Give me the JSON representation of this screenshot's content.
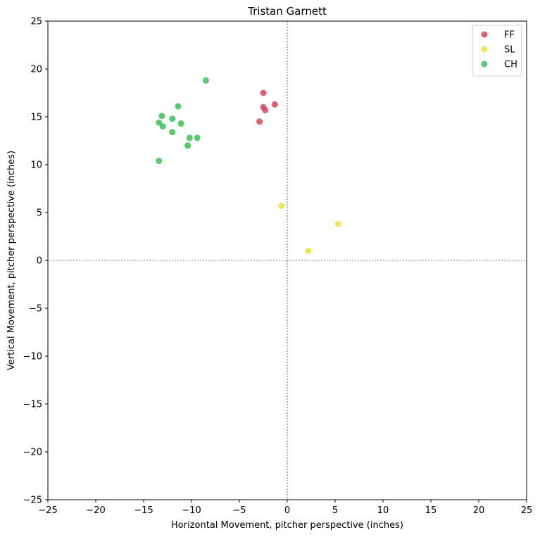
{
  "chart_data": {
    "type": "scatter",
    "title": "Tristan Garnett",
    "xlabel": "Horizontal Movement, pitcher perspective (inches)",
    "ylabel": "Vertical Movement, pitcher perspective (inches)",
    "xlim": [
      -25,
      25
    ],
    "ylim": [
      -25,
      25
    ],
    "xticks": [
      -25,
      -20,
      -15,
      -10,
      -5,
      0,
      5,
      10,
      15,
      20,
      25
    ],
    "yticks": [
      -25,
      -20,
      -15,
      -10,
      -5,
      0,
      5,
      10,
      15,
      20,
      25
    ],
    "reference_lines": {
      "x": 0,
      "y": 0,
      "style": "dashed"
    },
    "grid": false,
    "legend_position": "top-right",
    "series": [
      {
        "name": "FF",
        "color": "#d1495b",
        "points": [
          {
            "x": -2.5,
            "y": 17.5
          },
          {
            "x": -1.3,
            "y": 16.3
          },
          {
            "x": -2.5,
            "y": 16.0
          },
          {
            "x": -2.3,
            "y": 15.7
          },
          {
            "x": -2.9,
            "y": 14.5
          }
        ]
      },
      {
        "name": "SL",
        "color": "#e8e337",
        "points": [
          {
            "x": -0.6,
            "y": 5.7
          },
          {
            "x": 5.3,
            "y": 3.8
          },
          {
            "x": 2.2,
            "y": 1.0
          }
        ]
      },
      {
        "name": "CH",
        "color": "#3cbf55",
        "points": [
          {
            "x": -8.5,
            "y": 18.8
          },
          {
            "x": -11.4,
            "y": 16.1
          },
          {
            "x": -13.1,
            "y": 15.1
          },
          {
            "x": -12.0,
            "y": 14.8
          },
          {
            "x": -13.4,
            "y": 14.4
          },
          {
            "x": -11.1,
            "y": 14.3
          },
          {
            "x": -13.0,
            "y": 14.0
          },
          {
            "x": -12.0,
            "y": 13.4
          },
          {
            "x": -10.2,
            "y": 12.8
          },
          {
            "x": -9.4,
            "y": 12.8
          },
          {
            "x": -10.4,
            "y": 12.0
          },
          {
            "x": -13.4,
            "y": 10.4
          }
        ]
      }
    ]
  }
}
